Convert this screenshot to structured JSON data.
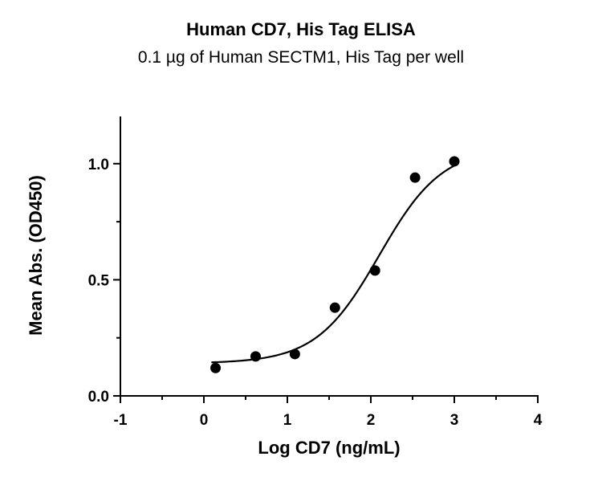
{
  "chart_data": {
    "type": "scatter",
    "title": "Human CD7, His Tag ELISA",
    "subtitle": "0.1 µg of Human SECTM1, His Tag per well",
    "xlabel": "Log CD7 (ng/mL)",
    "ylabel": "Mean  Abs. (OD450)",
    "xlim": [
      -1,
      4
    ],
    "ylim": [
      0,
      1.2
    ],
    "x_ticks": [
      "-1",
      "0",
      "1",
      "2",
      "3",
      "4"
    ],
    "y_ticks": [
      "0.0",
      "0.5",
      "1.0"
    ],
    "series": [
      {
        "x": [
          0.14,
          0.62,
          1.09,
          1.57,
          2.05,
          2.53,
          3.0
        ],
        "y": [
          0.12,
          0.17,
          0.18,
          0.38,
          0.54,
          0.94,
          1.01
        ]
      }
    ],
    "fit_curve": {
      "model": "4PL",
      "bottom": 0.14,
      "top": 1.07,
      "logEC50": 2.1,
      "hill": 1.15
    },
    "grid": false,
    "legend": "none",
    "colors": {
      "marker": "#000000",
      "line": "#000000"
    }
  }
}
